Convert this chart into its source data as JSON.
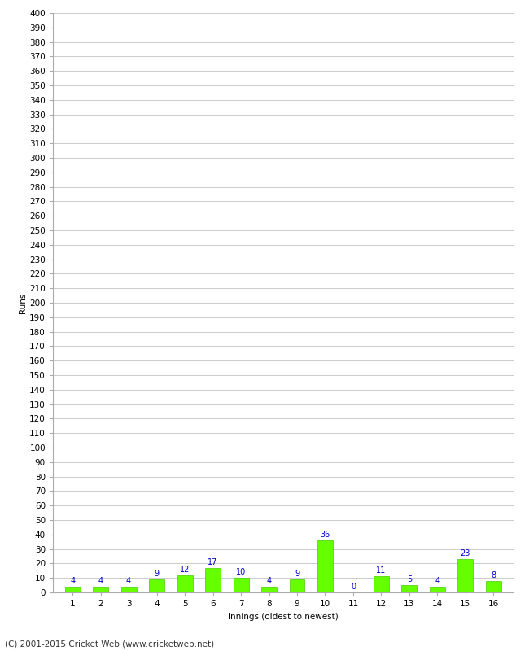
{
  "innings": [
    1,
    2,
    3,
    4,
    5,
    6,
    7,
    8,
    9,
    10,
    11,
    12,
    13,
    14,
    15,
    16
  ],
  "runs": [
    4,
    4,
    4,
    9,
    12,
    17,
    10,
    4,
    9,
    36,
    0,
    11,
    5,
    4,
    23,
    8
  ],
  "bar_color": "#66ff00",
  "bar_edge_color": "#44cc00",
  "value_color": "#0000cc",
  "xlabel": "Innings (oldest to newest)",
  "ylabel": "Runs",
  "ylim": [
    0,
    400
  ],
  "background_color": "#ffffff",
  "grid_color": "#cccccc",
  "footer": "(C) 2001-2015 Cricket Web (www.cricketweb.net)",
  "value_fontsize": 7,
  "axis_label_fontsize": 7.5,
  "tick_fontsize": 7.5,
  "footer_fontsize": 7.5
}
